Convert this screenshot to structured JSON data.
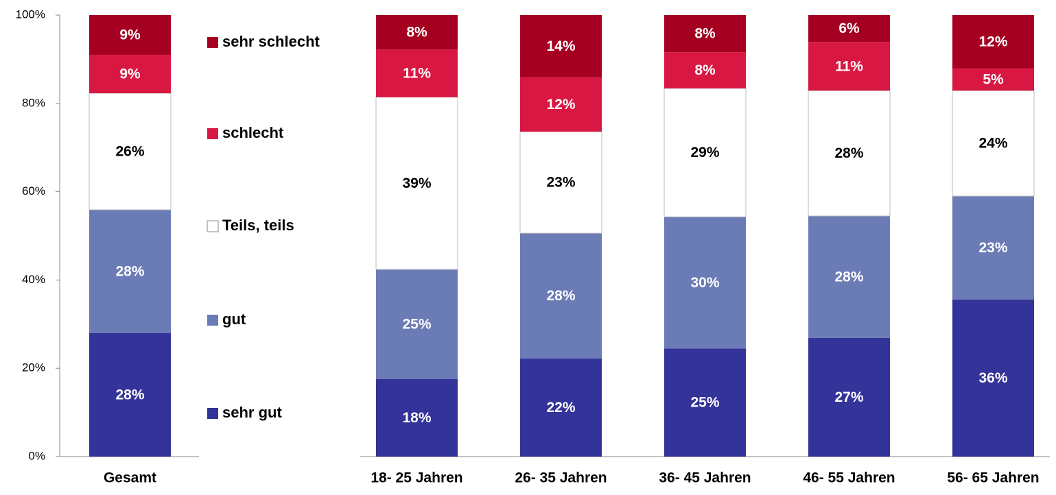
{
  "chart_data": {
    "type": "stacked_bar",
    "categories": [
      "Gesamt",
      "18- 25 Jahren",
      "26- 35 Jahren",
      "36- 45 Jahren",
      "46- 55 Jahren",
      "56- 65 Jahren"
    ],
    "series": [
      {
        "name": "sehr gut",
        "color": "#333399",
        "values": [
          28.0,
          17.6,
          22.2,
          24.5,
          26.9,
          35.6
        ],
        "value_labels": [
          "28%",
          "18%",
          "22%",
          "25%",
          "27%",
          "36%"
        ]
      },
      {
        "name": "gut",
        "color": "#6b7bb5",
        "values": [
          27.9,
          24.8,
          28.4,
          29.8,
          27.6,
          23.4
        ],
        "value_labels": [
          "28%",
          "25%",
          "28%",
          "30%",
          "28%",
          "23%"
        ]
      },
      {
        "name": "Teils, teils",
        "color": "#ffffff",
        "values": [
          26.4,
          39.0,
          23.0,
          29.1,
          28.4,
          23.9
        ],
        "value_labels": [
          "26%",
          "39%",
          "23%",
          "29%",
          "28%",
          "24%"
        ]
      },
      {
        "name": "schlecht",
        "color": "#d81842",
        "values": [
          8.7,
          10.8,
          12.3,
          8.2,
          11.0,
          5.0
        ],
        "value_labels": [
          "9%",
          "11%",
          "12%",
          "8%",
          "11%",
          "5%"
        ]
      },
      {
        "name": "sehr schlecht",
        "color": "#a50021",
        "values": [
          9.0,
          7.8,
          14.1,
          8.4,
          6.1,
          12.1
        ],
        "value_labels": [
          "9%",
          "8%",
          "14%",
          "8%",
          "6%",
          "12%"
        ]
      }
    ],
    "ylim": [
      0,
      100
    ],
    "yticks": [
      {
        "value": 0,
        "label": "0%"
      },
      {
        "value": 20,
        "label": "20%"
      },
      {
        "value": 40,
        "label": "40%"
      },
      {
        "value": 60,
        "label": "60%"
      },
      {
        "value": 80,
        "label": "80%"
      },
      {
        "value": 100,
        "label": "100%"
      }
    ]
  }
}
